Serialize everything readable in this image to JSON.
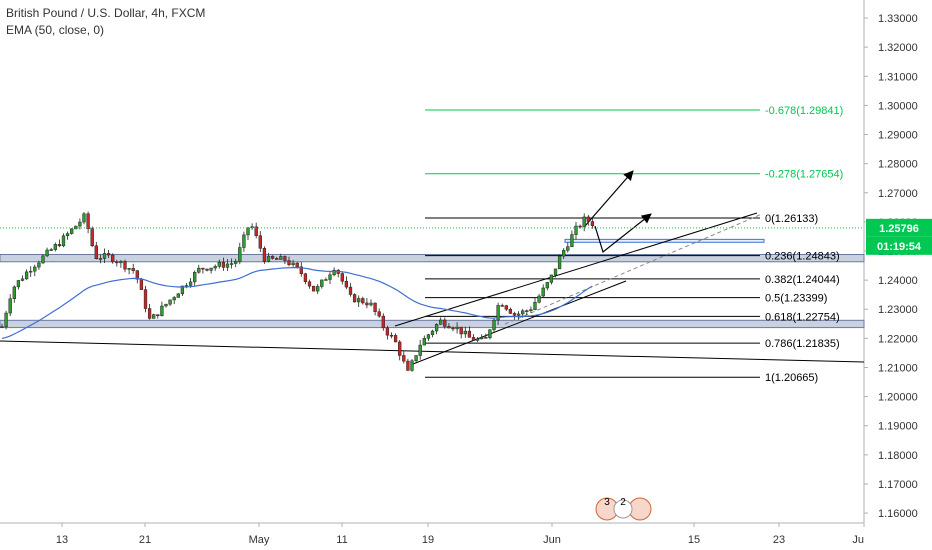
{
  "chart_data": {
    "type": "candlestick",
    "title": "British Pound / U.S. Dollar, 4h, FXCM",
    "indicator": "EMA (50, close, 0)",
    "price_axis": {
      "ticks": [
        "1.33000",
        "1.32000",
        "1.31000",
        "1.30000",
        "1.29000",
        "1.28000",
        "1.27000",
        "1.26000",
        "1.25000",
        "1.24000",
        "1.23000",
        "1.22000",
        "1.21000",
        "1.20000",
        "1.19000",
        "1.18000",
        "1.17000",
        "1.16000"
      ],
      "range": [
        1.1535,
        1.3362
      ]
    },
    "time_axis": {
      "ticks": [
        "13",
        "21",
        "May",
        "11",
        "19",
        "Jun",
        "15",
        "23",
        "Ju"
      ]
    },
    "current_price": {
      "value": 1.25796,
      "label": "1.25796",
      "countdown": "01:19:54",
      "color": "#00c853"
    },
    "fib_levels": [
      {
        "ratio": "-0.678",
        "price": 1.29841,
        "label": "-0.678(1.29841)",
        "color": "#00c853"
      },
      {
        "ratio": "-0.278",
        "price": 1.27654,
        "label": "-0.278(1.27654)",
        "color": "#00c853"
      },
      {
        "ratio": "0",
        "price": 1.26133,
        "label": "0(1.26133)",
        "color": "#000000"
      },
      {
        "ratio": "0.236",
        "price": 1.24843,
        "label": "0.236(1.24843)",
        "color": "#000000"
      },
      {
        "ratio": "0.382",
        "price": 1.24044,
        "label": "0.382(1.24044)",
        "color": "#000000"
      },
      {
        "ratio": "0.5",
        "price": 1.23399,
        "label": "0.5(1.23399)",
        "color": "#000000"
      },
      {
        "ratio": "0.618",
        "price": 1.22754,
        "label": "0.618(1.22754)",
        "color": "#000000"
      },
      {
        "ratio": "0.786",
        "price": 1.21835,
        "label": "0.786(1.21835)",
        "color": "#000000"
      },
      {
        "ratio": "1",
        "price": 1.20665,
        "label": "1(1.20665)",
        "color": "#000000"
      }
    ],
    "zones": [
      {
        "low": 1.2463,
        "high": 1.2488
      },
      {
        "low": 1.2237,
        "high": 1.2262
      },
      {
        "low": 1.253,
        "high": 1.254
      }
    ],
    "series": [
      {
        "name": "GBPUSD",
        "ohlc_points": 146,
        "color_up": "#26a69a",
        "color_down": "#ef5350"
      },
      {
        "name": "EMA (50, close, 0)",
        "color": "#3f6fd1"
      }
    ],
    "events_badge": {
      "count": "3",
      "count2": "2"
    },
    "colors": {
      "up": "#2e9c2e",
      "down": "#c62828",
      "ema": "#3f6fd1",
      "zone": "#b7c1d6",
      "green": "#00c853",
      "axis_text": "#333333"
    }
  }
}
